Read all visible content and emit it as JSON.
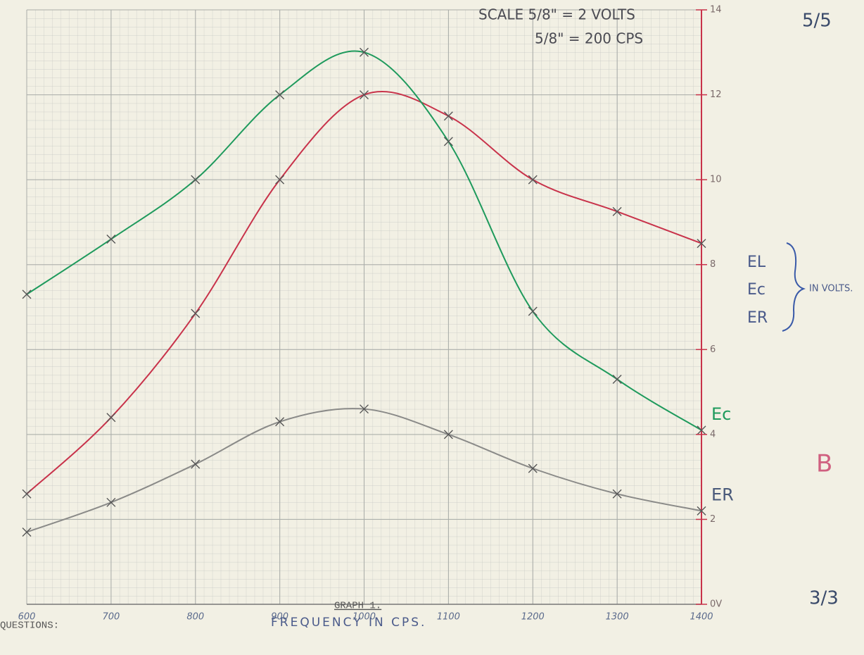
{
  "chart_data": {
    "type": "line",
    "title": "GRAPH 1.",
    "xlabel": "FREQUENCY IN CPS.",
    "ylabel": "IN VOLTS.",
    "x": [
      600,
      700,
      800,
      900,
      1000,
      1100,
      1200,
      1300,
      1400
    ],
    "xlim": [
      600,
      1400
    ],
    "xticks": [
      600,
      700,
      800,
      900,
      1000,
      1100,
      1200,
      1300,
      1400
    ],
    "ylim": [
      0,
      14
    ],
    "yticks": [
      {
        "value": 0,
        "label": "0V"
      },
      2,
      4,
      6,
      8,
      10,
      12,
      14
    ],
    "grid": true,
    "series": [
      {
        "name": "EL",
        "color": "#c8324a",
        "values": [
          2.6,
          4.4,
          6.85,
          10,
          12,
          11.5,
          10,
          9.25,
          8.5
        ]
      },
      {
        "name": "Ec",
        "color": "#1e9a5c",
        "values": [
          7.3,
          8.6,
          10,
          12,
          13,
          10.9,
          6.9,
          5.3,
          4.1
        ]
      },
      {
        "name": "ER",
        "color": "#8a8a88",
        "values": [
          1.7,
          2.4,
          3.3,
          4.3,
          4.6,
          4.0,
          3.2,
          2.6,
          2.2
        ]
      }
    ],
    "annotations": [
      "SCALE 5/8\" = 2 VOLTS",
      "5/8\" = 200 CPS"
    ]
  },
  "page": {
    "questions": "QUESTIONS:",
    "grades": [
      "5/5",
      "B",
      "3/3"
    ]
  }
}
